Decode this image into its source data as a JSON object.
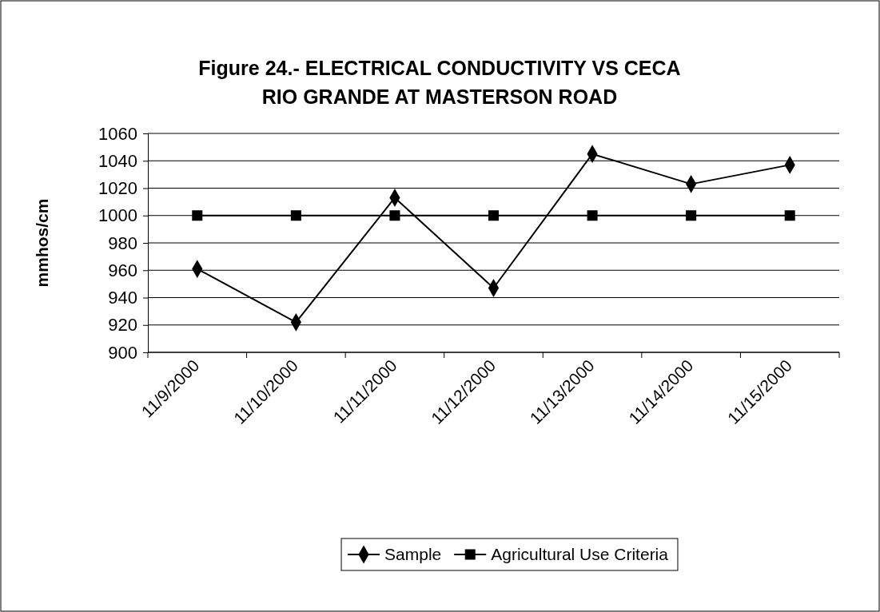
{
  "chart_data": {
    "type": "line",
    "title": "Figure 24.- ELECTRICAL CONDUCTIVITY VS CECA\nRIO GRANDE AT MASTERSON ROAD",
    "ylabel": "mmhos/cm",
    "categories": [
      "11/9/2000",
      "11/10/2000",
      "11/11/2000",
      "11/12/2000",
      "11/13/2000",
      "11/14/2000",
      "11/15/2000"
    ],
    "series": [
      {
        "name": "Sample",
        "color": "#000000",
        "marker": "diamond",
        "values": [
          961,
          922,
          1013,
          947,
          1045,
          1023,
          1037
        ]
      },
      {
        "name": "Agricultural Use Criteria",
        "color": "#000000",
        "marker": "square",
        "values": [
          1000,
          1000,
          1000,
          1000,
          1000,
          1000,
          1000
        ]
      }
    ],
    "ylim": [
      900,
      1060
    ],
    "yticks": [
      900,
      920,
      940,
      960,
      980,
      1000,
      1020,
      1040,
      1060
    ],
    "grid": "y",
    "legend": "bottom",
    "line_style": "solid"
  }
}
